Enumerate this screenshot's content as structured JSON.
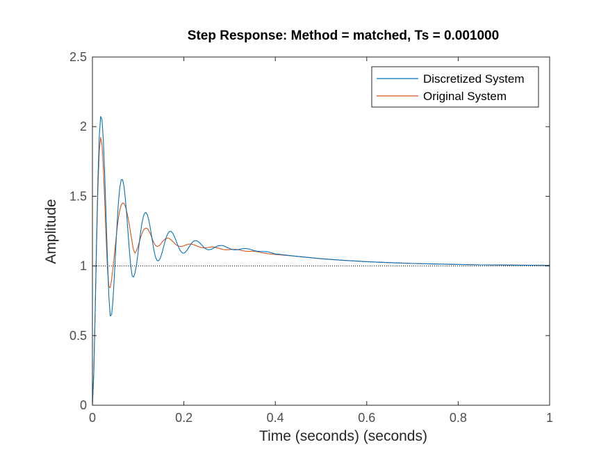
{
  "chart_data": {
    "type": "line",
    "title": "Step Response: Method = matched, Ts = 0.001000",
    "xlabel": "Time (seconds) (seconds)",
    "ylabel": "Amplitude",
    "xlim": [
      0,
      1
    ],
    "ylim": [
      0,
      2.5
    ],
    "xticks": [
      0,
      0.2,
      0.4,
      0.6,
      0.8,
      1
    ],
    "xtick_labels": [
      "0",
      "0.2",
      "0.4",
      "0.6",
      "0.8",
      "1"
    ],
    "yticks": [
      0,
      0.5,
      1,
      1.5,
      2,
      2.5
    ],
    "ytick_labels": [
      "0",
      "0.5",
      "1",
      "1.5",
      "2",
      "2.5"
    ],
    "grid": false,
    "legend_position": "top-right",
    "reference_line": {
      "y": 1,
      "style": "dotted",
      "color": "#000000"
    },
    "series": [
      {
        "name": "Discretized System",
        "color": "#0072BD",
        "x": [
          0,
          0.003,
          0.006,
          0.009,
          0.012,
          0.015,
          0.018,
          0.021,
          0.024,
          0.027,
          0.03,
          0.033,
          0.036,
          0.039,
          0.042,
          0.045,
          0.048,
          0.051,
          0.054,
          0.057,
          0.06,
          0.063,
          0.066,
          0.069,
          0.072,
          0.075,
          0.078,
          0.081,
          0.084,
          0.087,
          0.09,
          0.093,
          0.096,
          0.099,
          0.102,
          0.105,
          0.108,
          0.111,
          0.114,
          0.117,
          0.12,
          0.123,
          0.126,
          0.129,
          0.132,
          0.135,
          0.138,
          0.141,
          0.144,
          0.147,
          0.15,
          0.153,
          0.156,
          0.159,
          0.162,
          0.165,
          0.168,
          0.171,
          0.174,
          0.177,
          0.18,
          0.183,
          0.186,
          0.189,
          0.192,
          0.195,
          0.198,
          0.201,
          0.204,
          0.207,
          0.21,
          0.213,
          0.216,
          0.219,
          0.222,
          0.225,
          0.228,
          0.231,
          0.234,
          0.237,
          0.24,
          0.243,
          0.246,
          0.249,
          0.252,
          0.255,
          0.258,
          0.261,
          0.264,
          0.267,
          0.27,
          0.273,
          0.276,
          0.279,
          0.282,
          0.285,
          0.288,
          0.291,
          0.294,
          0.297,
          0.3,
          0.303,
          0.306,
          0.309,
          0.312,
          0.315,
          0.318,
          0.321,
          0.324,
          0.327,
          0.33,
          0.333,
          0.336,
          0.339,
          0.342,
          0.345,
          0.348,
          0.351,
          0.354,
          0.357,
          0.36,
          0.363,
          0.366,
          0.369,
          0.372,
          0.375,
          0.378,
          0.381,
          0.384,
          0.387,
          0.39,
          0.393,
          0.396,
          0.399,
          0.45,
          0.5,
          0.55,
          0.6,
          0.65,
          0.7,
          0.75,
          0.8,
          0.85,
          0.9,
          0.95,
          1.0
        ],
        "y": [
          0,
          0.231,
          0.673,
          1.171,
          1.622,
          1.931,
          2.073,
          2.049,
          1.894,
          1.645,
          1.345,
          1.039,
          0.779,
          0.641,
          0.65,
          0.756,
          0.928,
          1.124,
          1.308,
          1.461,
          1.566,
          1.619,
          1.62,
          1.574,
          1.484,
          1.367,
          1.236,
          1.105,
          0.995,
          0.928,
          0.92,
          0.949,
          1.0,
          1.072,
          1.153,
          1.233,
          1.301,
          1.35,
          1.378,
          1.384,
          1.369,
          1.334,
          1.284,
          1.224,
          1.162,
          1.105,
          1.063,
          1.041,
          1.036,
          1.046,
          1.07,
          1.104,
          1.142,
          1.179,
          1.21,
          1.233,
          1.246,
          1.249,
          1.242,
          1.227,
          1.206,
          1.181,
          1.155,
          1.131,
          1.111,
          1.098,
          1.092,
          1.093,
          1.101,
          1.113,
          1.129,
          1.145,
          1.16,
          1.172,
          1.179,
          1.182,
          1.181,
          1.176,
          1.168,
          1.158,
          1.147,
          1.137,
          1.128,
          1.121,
          1.117,
          1.116,
          1.118,
          1.121,
          1.126,
          1.132,
          1.137,
          1.142,
          1.145,
          1.147,
          1.147,
          1.146,
          1.143,
          1.139,
          1.134,
          1.129,
          1.125,
          1.121,
          1.118,
          1.116,
          1.115,
          1.116,
          1.117,
          1.119,
          1.121,
          1.123,
          1.124,
          1.125,
          1.125,
          1.124,
          1.122,
          1.119,
          1.116,
          1.113,
          1.11,
          1.108,
          1.106,
          1.105,
          1.104,
          1.104,
          1.104,
          1.104,
          1.103,
          1.103,
          1.101,
          1.099,
          1.096,
          1.093,
          1.09,
          1.087,
          1.068,
          1.052,
          1.04,
          1.031,
          1.024,
          1.018,
          1.014,
          1.011,
          1.008,
          1.007,
          1.005,
          1.004
        ]
      },
      {
        "name": "Original System",
        "color": "#D95319",
        "x": [
          0,
          0.003,
          0.006,
          0.009,
          0.012,
          0.015,
          0.018,
          0.021,
          0.024,
          0.027,
          0.03,
          0.033,
          0.036,
          0.039,
          0.042,
          0.045,
          0.048,
          0.051,
          0.054,
          0.057,
          0.06,
          0.063,
          0.066,
          0.069,
          0.072,
          0.075,
          0.078,
          0.081,
          0.084,
          0.087,
          0.09,
          0.093,
          0.096,
          0.099,
          0.102,
          0.105,
          0.108,
          0.111,
          0.114,
          0.117,
          0.12,
          0.123,
          0.126,
          0.129,
          0.132,
          0.135,
          0.138,
          0.141,
          0.144,
          0.147,
          0.15,
          0.153,
          0.156,
          0.159,
          0.162,
          0.165,
          0.168,
          0.171,
          0.174,
          0.177,
          0.18,
          0.183,
          0.186,
          0.189,
          0.192,
          0.195,
          0.198,
          0.201,
          0.204,
          0.207,
          0.21,
          0.213,
          0.216,
          0.219,
          0.222,
          0.225,
          0.228,
          0.231,
          0.234,
          0.237,
          0.24,
          0.243,
          0.246,
          0.249,
          0.252,
          0.255,
          0.258,
          0.261,
          0.264,
          0.267,
          0.27,
          0.273,
          0.276,
          0.279,
          0.282,
          0.285,
          0.288,
          0.291,
          0.294,
          0.297,
          0.3,
          0.303,
          0.306,
          0.309,
          0.312,
          0.315,
          0.318,
          0.321,
          0.324,
          0.327,
          0.33,
          0.333,
          0.336,
          0.339,
          0.342,
          0.345,
          0.348,
          0.351,
          0.354,
          0.357,
          0.36,
          0.363,
          0.366,
          0.369,
          0.372,
          0.375,
          0.378,
          0.381,
          0.384,
          0.387,
          0.39,
          0.393,
          0.396,
          0.399,
          0.45,
          0.5,
          0.55,
          0.6,
          0.65,
          0.7,
          0.75,
          0.8,
          0.85,
          0.9,
          0.95,
          1.0
        ],
        "y": [
          0,
          0.231,
          0.667,
          1.146,
          1.552,
          1.82,
          1.923,
          1.87,
          1.695,
          1.451,
          1.192,
          0.975,
          0.853,
          0.843,
          0.902,
          0.988,
          1.08,
          1.176,
          1.268,
          1.345,
          1.402,
          1.437,
          1.452,
          1.449,
          1.428,
          1.392,
          1.345,
          1.29,
          1.23,
          1.17,
          1.113,
          1.092,
          1.105,
          1.133,
          1.166,
          1.199,
          1.229,
          1.253,
          1.267,
          1.272,
          1.268,
          1.255,
          1.235,
          1.211,
          1.186,
          1.163,
          1.147,
          1.14,
          1.142,
          1.149,
          1.161,
          1.173,
          1.184,
          1.193,
          1.198,
          1.2,
          1.197,
          1.19,
          1.181,
          1.172,
          1.162,
          1.153,
          1.146,
          1.142,
          1.14,
          1.14,
          1.142,
          1.146,
          1.15,
          1.153,
          1.156,
          1.157,
          1.157,
          1.155,
          1.152,
          1.148,
          1.144,
          1.14,
          1.136,
          1.133,
          1.131,
          1.13,
          1.13,
          1.131,
          1.132,
          1.134,
          1.135,
          1.136,
          1.136,
          1.135,
          1.133,
          1.13,
          1.127,
          1.124,
          1.121,
          1.119,
          1.117,
          1.116,
          1.116,
          1.116,
          1.117,
          1.118,
          1.119,
          1.119,
          1.119,
          1.118,
          1.117,
          1.115,
          1.113,
          1.111,
          1.109,
          1.107,
          1.106,
          1.105,
          1.105,
          1.105,
          1.105,
          1.105,
          1.104,
          1.104,
          1.103,
          1.101,
          1.099,
          1.097,
          1.095,
          1.093,
          1.091,
          1.089,
          1.088,
          1.087,
          1.086,
          1.085,
          1.084,
          1.083,
          1.068,
          1.052,
          1.04,
          1.031,
          1.024,
          1.018,
          1.014,
          1.011,
          1.008,
          1.007,
          1.005,
          1.004
        ]
      }
    ]
  }
}
